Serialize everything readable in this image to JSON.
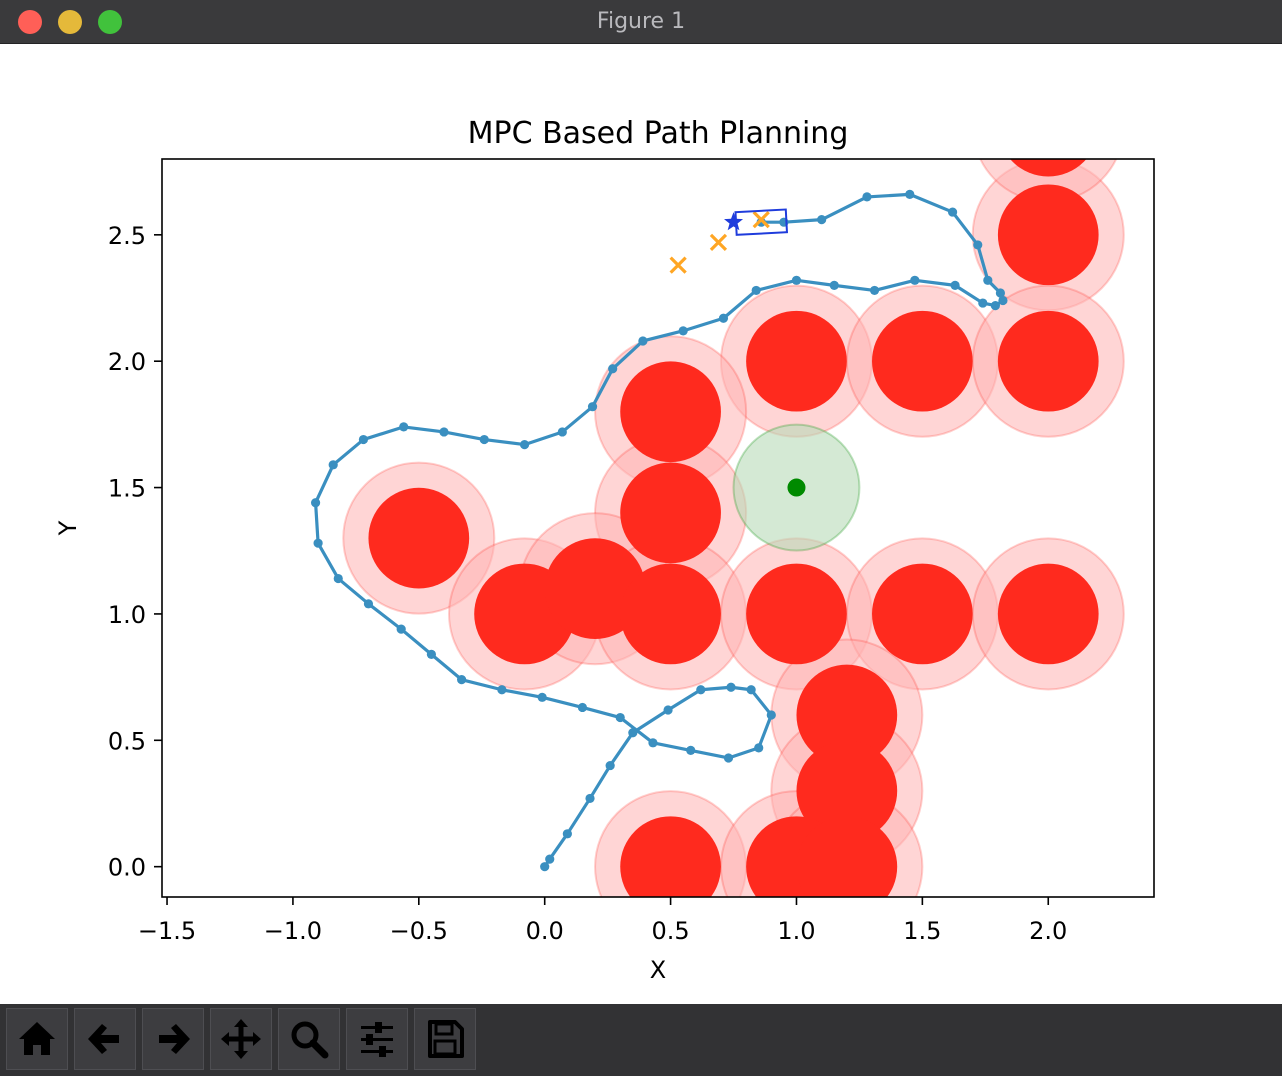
{
  "window": {
    "title": "Figure 1"
  },
  "toolbar": {
    "buttons": [
      {
        "name": "home-button",
        "icon": "home-icon"
      },
      {
        "name": "back-button",
        "icon": "arrow-left-icon"
      },
      {
        "name": "forward-button",
        "icon": "arrow-right-icon"
      },
      {
        "name": "pan-button",
        "icon": "move-icon"
      },
      {
        "name": "zoom-button",
        "icon": "magnifier-icon"
      },
      {
        "name": "configure-subplots-button",
        "icon": "sliders-icon"
      },
      {
        "name": "save-button",
        "icon": "floppy-disk-icon"
      }
    ]
  },
  "chart_data": {
    "type": "scatter",
    "title": "MPC Based Path Planning",
    "xlabel": "X",
    "ylabel": "Y",
    "xlim": [
      -1.52,
      2.42
    ],
    "ylim": [
      -0.12,
      2.8
    ],
    "xticks": [
      -1.5,
      -1.0,
      -0.5,
      0.0,
      0.5,
      1.0,
      1.5,
      2.0
    ],
    "xtick_labels": [
      "−1.5",
      "−1.0",
      "−0.5",
      "0.0",
      "0.5",
      "1.0",
      "1.5",
      "2.0"
    ],
    "yticks": [
      0.0,
      0.5,
      1.0,
      1.5,
      2.0,
      2.5
    ],
    "ytick_labels": [
      "0.0",
      "0.5",
      "1.0",
      "1.5",
      "2.0",
      "2.5"
    ],
    "grid": false,
    "colors": {
      "obstacle": "#ff2a1e",
      "obstacle_margin": "#ffb3b3",
      "goal": "#008a00",
      "goal_region": "#b7dbb7",
      "path": "#3a8fc0",
      "prediction": "#ffa624",
      "robot": "#1f3cdc"
    },
    "obstacles": {
      "radius": 0.2,
      "margin_radius": 0.3,
      "centers": [
        [
          2.0,
          2.5
        ],
        [
          1.0,
          2.0
        ],
        [
          1.5,
          2.0
        ],
        [
          2.0,
          2.0
        ],
        [
          0.5,
          1.8
        ],
        [
          0.5,
          1.4
        ],
        [
          -0.5,
          1.3
        ],
        [
          -0.08,
          1.0
        ],
        [
          0.2,
          1.1
        ],
        [
          0.5,
          1.0
        ],
        [
          1.0,
          1.0
        ],
        [
          1.5,
          1.0
        ],
        [
          2.0,
          1.0
        ],
        [
          1.2,
          0.6
        ],
        [
          1.2,
          0.3
        ],
        [
          0.5,
          0.0
        ],
        [
          1.0,
          0.0
        ],
        [
          1.2,
          0.0
        ],
        [
          2.0,
          2.93
        ]
      ]
    },
    "goal": {
      "x": 1.0,
      "y": 1.5,
      "region_radius": 0.25
    },
    "path": [
      [
        0.0,
        0.0
      ],
      [
        0.02,
        0.03
      ],
      [
        0.09,
        0.13
      ],
      [
        0.18,
        0.27
      ],
      [
        0.26,
        0.4
      ],
      [
        0.35,
        0.53
      ],
      [
        0.49,
        0.62
      ],
      [
        0.62,
        0.7
      ],
      [
        0.74,
        0.71
      ],
      [
        0.82,
        0.7
      ],
      [
        0.9,
        0.6
      ],
      [
        0.85,
        0.47
      ],
      [
        0.73,
        0.43
      ],
      [
        0.58,
        0.46
      ],
      [
        0.43,
        0.49
      ],
      [
        0.3,
        0.59
      ],
      [
        0.15,
        0.63
      ],
      [
        -0.01,
        0.67
      ],
      [
        -0.17,
        0.7
      ],
      [
        -0.33,
        0.74
      ],
      [
        -0.45,
        0.84
      ],
      [
        -0.57,
        0.94
      ],
      [
        -0.7,
        1.04
      ],
      [
        -0.82,
        1.14
      ],
      [
        -0.9,
        1.28
      ],
      [
        -0.91,
        1.44
      ],
      [
        -0.84,
        1.59
      ],
      [
        -0.72,
        1.69
      ],
      [
        -0.56,
        1.74
      ],
      [
        -0.4,
        1.72
      ],
      [
        -0.24,
        1.69
      ],
      [
        -0.08,
        1.67
      ],
      [
        0.07,
        1.72
      ],
      [
        0.19,
        1.82
      ],
      [
        0.27,
        1.97
      ],
      [
        0.39,
        2.08
      ],
      [
        0.55,
        2.12
      ],
      [
        0.71,
        2.17
      ],
      [
        0.84,
        2.28
      ],
      [
        1.0,
        2.32
      ],
      [
        1.15,
        2.3
      ],
      [
        1.31,
        2.28
      ],
      [
        1.47,
        2.32
      ],
      [
        1.63,
        2.3
      ],
      [
        1.74,
        2.23
      ],
      [
        1.79,
        2.22
      ],
      [
        1.82,
        2.24
      ],
      [
        1.81,
        2.27
      ],
      [
        1.76,
        2.32
      ],
      [
        1.72,
        2.46
      ],
      [
        1.62,
        2.59
      ],
      [
        1.45,
        2.66
      ],
      [
        1.28,
        2.65
      ],
      [
        1.1,
        2.56
      ],
      [
        0.95,
        2.55
      ],
      [
        0.86,
        2.55
      ]
    ],
    "prediction_points": [
      [
        0.53,
        2.38
      ],
      [
        0.69,
        2.47
      ],
      [
        0.86,
        2.56
      ]
    ],
    "robot": {
      "star": {
        "x": 0.75,
        "y": 2.55
      },
      "box_center": {
        "x": 0.86,
        "y": 2.55
      },
      "box_size": [
        0.2,
        0.09
      ],
      "heading_deg": 3
    }
  }
}
